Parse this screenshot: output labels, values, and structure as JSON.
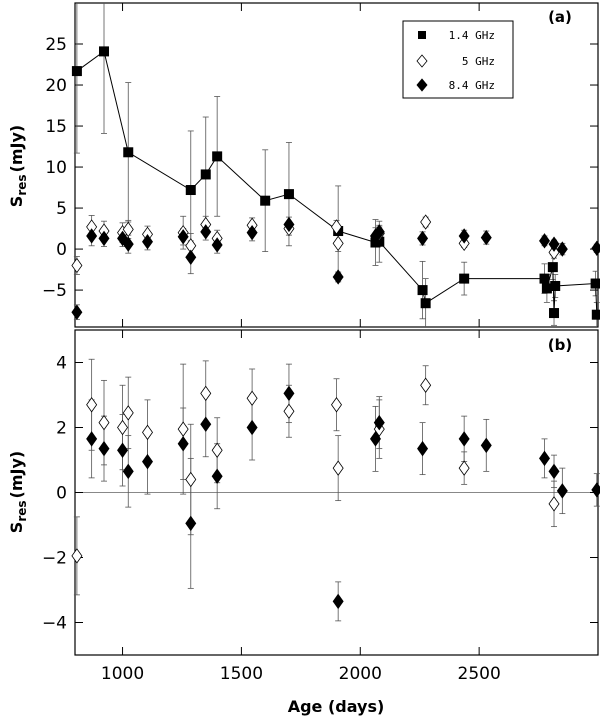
{
  "chart_data": [
    {
      "type": "scatter",
      "panel_label": "(a)",
      "ylabel_main": "S",
      "ylabel_sub": "res",
      "ylabel_unit": "(mJy)",
      "xlabel": "",
      "xlim": [
        800,
        3000
      ],
      "ylim": [
        -9.5,
        30
      ],
      "yticks": [
        {
          "value": -5,
          "label": "−5"
        },
        {
          "value": 0,
          "label": "0"
        },
        {
          "value": 5,
          "label": "5"
        },
        {
          "value": 10,
          "label": "10"
        },
        {
          "value": 15,
          "label": "15"
        },
        {
          "value": 20,
          "label": "20"
        },
        {
          "value": 25,
          "label": "25"
        }
      ],
      "legend": [
        "1.4 GHz",
        "5 GHz",
        "8.4 GHz"
      ],
      "legend_position": "top-right",
      "series": [
        {
          "name": "1.4 GHz",
          "marker": "square",
          "connected": true,
          "points": [
            {
              "x": 808,
              "y": 21.7,
              "err": 10.0
            },
            {
              "x": 922,
              "y": 24.1,
              "err": 10.0
            },
            {
              "x": 1024,
              "y": 11.8,
              "err": 8.5
            },
            {
              "x": 1287,
              "y": 7.2,
              "err": 7.2
            },
            {
              "x": 1350,
              "y": 9.1,
              "err": 7.0
            },
            {
              "x": 1398,
              "y": 11.3,
              "err": 7.3
            },
            {
              "x": 1600,
              "y": 5.9,
              "err": 6.2
            },
            {
              "x": 1700,
              "y": 6.7,
              "err": 6.3
            },
            {
              "x": 1907,
              "y": 2.2,
              "err": 5.5
            },
            {
              "x": 2064,
              "y": 0.8,
              "err": 2.8
            },
            {
              "x": 2080,
              "y": 0.9,
              "err": 2.5
            },
            {
              "x": 2262,
              "y": -5.0,
              "err": 3.5
            },
            {
              "x": 2275,
              "y": -6.6,
              "err": 3.0
            },
            {
              "x": 2437,
              "y": -3.6,
              "err": 2.0
            },
            {
              "x": 2775,
              "y": -3.6,
              "err": 1.8
            },
            {
              "x": 2785,
              "y": -4.8,
              "err": 1.7
            },
            {
              "x": 2810,
              "y": -2.2,
              "err": 1.5
            },
            {
              "x": 2815,
              "y": -7.8,
              "err": 1.5
            },
            {
              "x": 2820,
              "y": -4.5,
              "err": 1.4
            },
            {
              "x": 2990,
              "y": -4.2,
              "err": 1.5
            },
            {
              "x": 2995,
              "y": -8.0,
              "err": 1.5
            }
          ]
        },
        {
          "name": "5 GHz",
          "marker": "open-diamond",
          "connected": false,
          "points": [
            {
              "x": 808,
              "y": -2.0,
              "err": 1.1
            },
            {
              "x": 870,
              "y": 2.7,
              "err": 1.4
            },
            {
              "x": 922,
              "y": 2.2,
              "err": 1.2
            },
            {
              "x": 1000,
              "y": 2.0,
              "err": 1.2
            },
            {
              "x": 1024,
              "y": 2.4,
              "err": 1.1
            },
            {
              "x": 1105,
              "y": 1.8,
              "err": 1.0
            },
            {
              "x": 1255,
              "y": 2.0,
              "err": 2.0
            },
            {
              "x": 1287,
              "y": 0.4,
              "err": 1.5
            },
            {
              "x": 1350,
              "y": 3.0,
              "err": 1.0
            },
            {
              "x": 1398,
              "y": 1.3,
              "err": 1.0
            },
            {
              "x": 1545,
              "y": 2.9,
              "err": 0.9
            },
            {
              "x": 1700,
              "y": 2.5,
              "err": 0.8
            },
            {
              "x": 1900,
              "y": 2.7,
              "err": 0.8
            },
            {
              "x": 1907,
              "y": 0.7,
              "err": 1.0
            },
            {
              "x": 2080,
              "y": 1.9,
              "err": 0.8
            },
            {
              "x": 2275,
              "y": 3.3,
              "err": 0.6
            },
            {
              "x": 2437,
              "y": 0.7,
              "err": 0.5
            },
            {
              "x": 2815,
              "y": -0.4,
              "err": 0.7
            }
          ]
        },
        {
          "name": "8.4 GHz",
          "marker": "filled-diamond",
          "connected": false,
          "points": [
            {
              "x": 808,
              "y": -7.7,
              "err": 0.9
            },
            {
              "x": 870,
              "y": 1.6,
              "err": 1.2
            },
            {
              "x": 922,
              "y": 1.3,
              "err": 1.0
            },
            {
              "x": 1000,
              "y": 1.3,
              "err": 1.0
            },
            {
              "x": 1024,
              "y": 0.6,
              "err": 1.1
            },
            {
              "x": 1105,
              "y": 0.9,
              "err": 1.0
            },
            {
              "x": 1255,
              "y": 1.5,
              "err": 1.0
            },
            {
              "x": 1287,
              "y": -1.0,
              "err": 2.0
            },
            {
              "x": 1350,
              "y": 2.1,
              "err": 1.0
            },
            {
              "x": 1398,
              "y": 0.5,
              "err": 1.0
            },
            {
              "x": 1545,
              "y": 2.0,
              "err": 1.0
            },
            {
              "x": 1700,
              "y": 3.0,
              "err": 0.9
            },
            {
              "x": 1907,
              "y": -3.4,
              "err": 0.6
            },
            {
              "x": 2064,
              "y": 1.6,
              "err": 1.0
            },
            {
              "x": 2080,
              "y": 2.1,
              "err": 0.8
            },
            {
              "x": 2262,
              "y": 1.3,
              "err": 0.8
            },
            {
              "x": 2437,
              "y": 1.6,
              "err": 0.7
            },
            {
              "x": 2530,
              "y": 1.4,
              "err": 0.8
            },
            {
              "x": 2775,
              "y": 1.0,
              "err": 0.6
            },
            {
              "x": 2815,
              "y": 0.6,
              "err": 0.5
            },
            {
              "x": 2850,
              "y": 0.0,
              "err": 0.7
            },
            {
              "x": 2995,
              "y": 0.1,
              "err": 0.5
            }
          ]
        }
      ]
    },
    {
      "type": "scatter",
      "panel_label": "(b)",
      "ylabel_main": "S",
      "ylabel_sub": "res",
      "ylabel_unit": "(mJy)",
      "xlabel": "Age (days)",
      "xlim": [
        800,
        3000
      ],
      "ylim": [
        -5,
        5
      ],
      "zero_line": true,
      "xticks": [
        {
          "value": 1000,
          "label": "1000"
        },
        {
          "value": 1500,
          "label": "1500"
        },
        {
          "value": 2000,
          "label": "2000"
        },
        {
          "value": 2500,
          "label": "2500"
        }
      ],
      "yticks": [
        {
          "value": -4,
          "label": "−4"
        },
        {
          "value": -2,
          "label": "−2"
        },
        {
          "value": 0,
          "label": "0"
        },
        {
          "value": 2,
          "label": "2"
        },
        {
          "value": 4,
          "label": "4"
        }
      ],
      "series": [
        {
          "name": "5 GHz",
          "marker": "open-diamond",
          "connected": false,
          "points": [
            {
              "x": 808,
              "y": -1.95,
              "err": 1.2
            },
            {
              "x": 870,
              "y": 2.7,
              "err": 1.4
            },
            {
              "x": 922,
              "y": 2.15,
              "err": 1.3
            },
            {
              "x": 1000,
              "y": 2.0,
              "err": 1.3
            },
            {
              "x": 1024,
              "y": 2.45,
              "err": 1.1
            },
            {
              "x": 1105,
              "y": 1.85,
              "err": 1.0
            },
            {
              "x": 1255,
              "y": 1.95,
              "err": 2.0
            },
            {
              "x": 1287,
              "y": 0.4,
              "err": 1.7
            },
            {
              "x": 1350,
              "y": 3.05,
              "err": 1.0
            },
            {
              "x": 1398,
              "y": 1.3,
              "err": 1.0
            },
            {
              "x": 1545,
              "y": 2.9,
              "err": 0.9
            },
            {
              "x": 1700,
              "y": 2.5,
              "err": 0.8
            },
            {
              "x": 1900,
              "y": 2.7,
              "err": 0.8
            },
            {
              "x": 1907,
              "y": 0.75,
              "err": 1.0
            },
            {
              "x": 2080,
              "y": 1.95,
              "err": 0.9
            },
            {
              "x": 2275,
              "y": 3.3,
              "err": 0.6
            },
            {
              "x": 2437,
              "y": 0.75,
              "err": 0.5
            },
            {
              "x": 2815,
              "y": -0.35,
              "err": 0.7
            }
          ]
        },
        {
          "name": "8.4 GHz",
          "marker": "filled-diamond",
          "connected": false,
          "points": [
            {
              "x": 870,
              "y": 1.65,
              "err": 1.2
            },
            {
              "x": 922,
              "y": 1.35,
              "err": 1.0
            },
            {
              "x": 1000,
              "y": 1.3,
              "err": 1.1
            },
            {
              "x": 1024,
              "y": 0.65,
              "err": 1.1
            },
            {
              "x": 1105,
              "y": 0.95,
              "err": 1.0
            },
            {
              "x": 1255,
              "y": 1.5,
              "err": 1.1
            },
            {
              "x": 1287,
              "y": -0.95,
              "err": 2.0
            },
            {
              "x": 1350,
              "y": 2.1,
              "err": 1.0
            },
            {
              "x": 1398,
              "y": 0.5,
              "err": 1.0
            },
            {
              "x": 1545,
              "y": 2.0,
              "err": 1.0
            },
            {
              "x": 1700,
              "y": 3.05,
              "err": 0.9
            },
            {
              "x": 1907,
              "y": -3.35,
              "err": 0.6
            },
            {
              "x": 2064,
              "y": 1.65,
              "err": 1.0
            },
            {
              "x": 2080,
              "y": 2.15,
              "err": 0.8
            },
            {
              "x": 2262,
              "y": 1.35,
              "err": 0.8
            },
            {
              "x": 2437,
              "y": 1.65,
              "err": 0.7
            },
            {
              "x": 2530,
              "y": 1.45,
              "err": 0.8
            },
            {
              "x": 2775,
              "y": 1.05,
              "err": 0.6
            },
            {
              "x": 2815,
              "y": 0.65,
              "err": 0.5
            },
            {
              "x": 2850,
              "y": 0.05,
              "err": 0.7
            },
            {
              "x": 2995,
              "y": 0.08,
              "err": 0.5
            }
          ]
        }
      ]
    }
  ]
}
